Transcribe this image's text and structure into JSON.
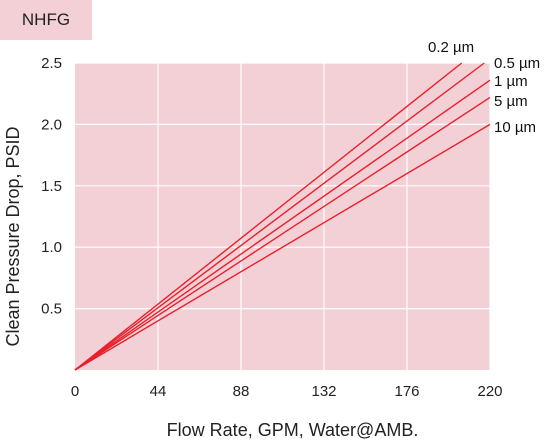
{
  "tag": "NHFG",
  "chart_data": {
    "type": "line",
    "title": "",
    "xlabel": "Flow Rate, GPM, Water@AMB.",
    "ylabel": "Clean Pressure Drop, PSID",
    "xlim": [
      0,
      220
    ],
    "ylim": [
      0,
      2.5
    ],
    "xticks": [
      0,
      44,
      88,
      132,
      176,
      220
    ],
    "yticks": [
      0.5,
      1.0,
      1.5,
      2.0,
      2.5
    ],
    "ytick_labels": [
      "0.5",
      "1.0",
      "1.5",
      "2.0",
      "2.5"
    ],
    "grid": true,
    "background": "#f3cfd6",
    "line_color": "#e8202a",
    "series": [
      {
        "name": "0.2 µm",
        "x": [
          0,
          205
        ],
        "y": [
          0,
          2.5
        ]
      },
      {
        "name": "0.5 µm",
        "x": [
          0,
          217
        ],
        "y": [
          0,
          2.5
        ]
      },
      {
        "name": "1 µm",
        "x": [
          0,
          220
        ],
        "y": [
          0,
          2.36
        ]
      },
      {
        "name": "5 µm",
        "x": [
          0,
          220
        ],
        "y": [
          0,
          2.22
        ]
      },
      {
        "name": "10 µm",
        "x": [
          0,
          220
        ],
        "y": [
          0,
          2.0
        ]
      }
    ]
  }
}
